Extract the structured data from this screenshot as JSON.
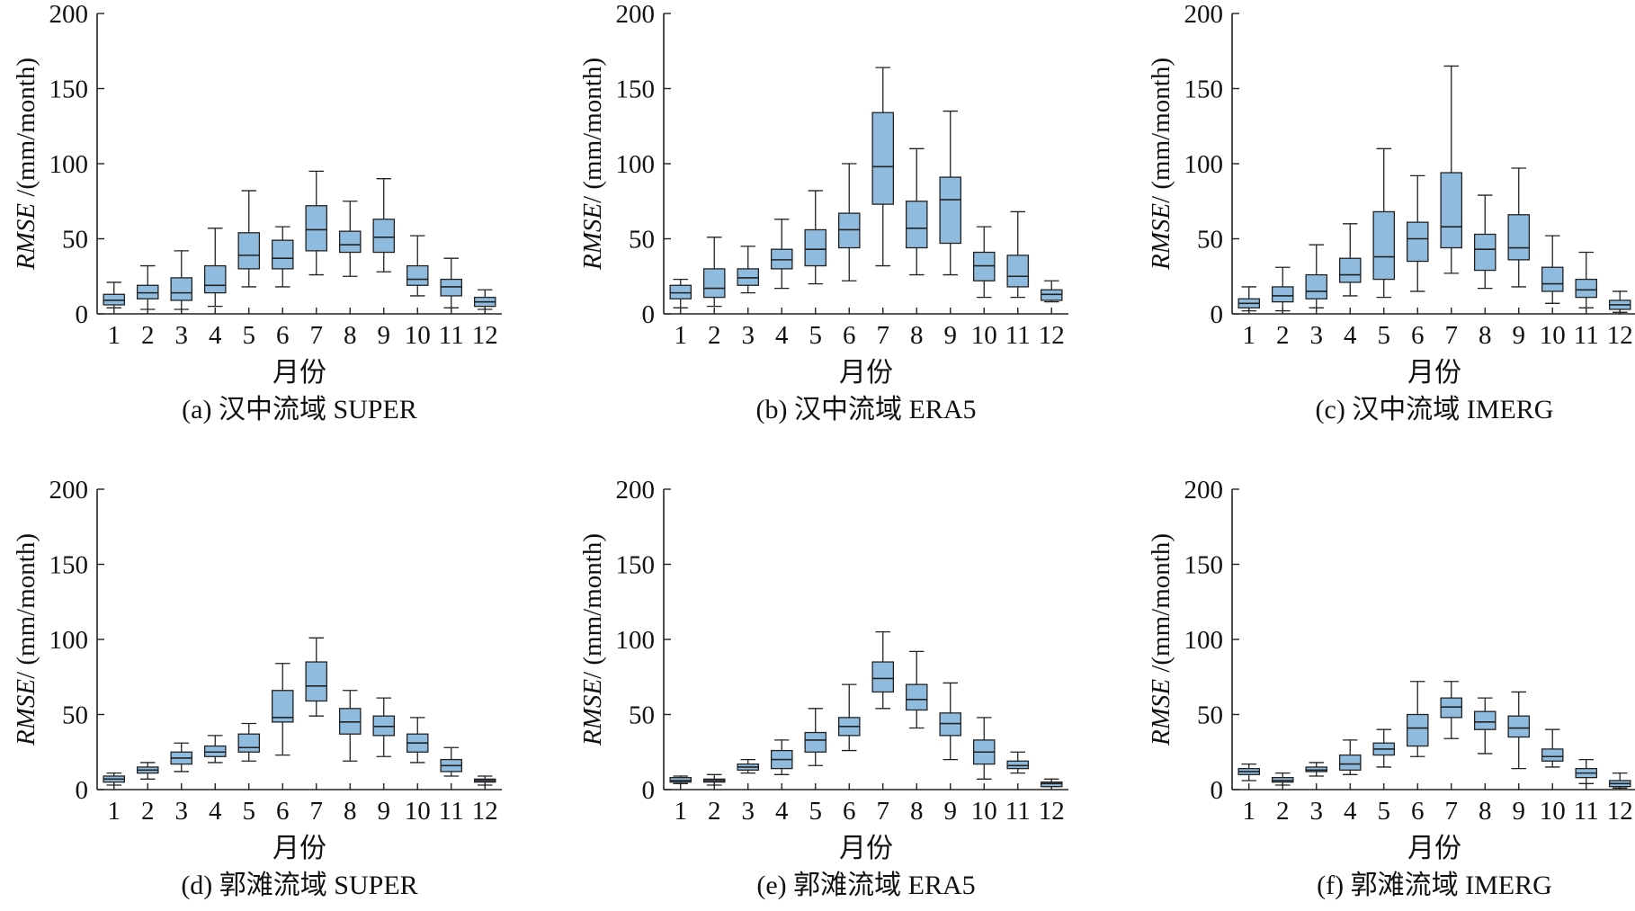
{
  "figure": {
    "caption_prefix_note": "Six boxplot panels of monthly RMSE",
    "box_fill": "#8FBCDE",
    "stroke_color": "#222222"
  },
  "chart_data": [
    {
      "type": "box",
      "label": "(a) 汉中流域 SUPER",
      "xlabel": "月份",
      "ylabel_italic": "RMSE",
      "ylabel_rest": " /(mm/month)",
      "ylim": [
        0,
        200
      ],
      "yticks": [
        0,
        50,
        100,
        150,
        200
      ],
      "categories": [
        "1",
        "2",
        "3",
        "4",
        "5",
        "6",
        "7",
        "8",
        "9",
        "10",
        "11",
        "12"
      ],
      "boxes": [
        {
          "min": 4,
          "q1": 6,
          "median": 9,
          "q3": 13,
          "max": 21
        },
        {
          "min": 3,
          "q1": 10,
          "median": 14,
          "q3": 19,
          "max": 32
        },
        {
          "min": 3,
          "q1": 9,
          "median": 14,
          "q3": 24,
          "max": 42
        },
        {
          "min": 5,
          "q1": 14,
          "median": 19,
          "q3": 32,
          "max": 57
        },
        {
          "min": 18,
          "q1": 30,
          "median": 39,
          "q3": 54,
          "max": 82
        },
        {
          "min": 18,
          "q1": 30,
          "median": 37,
          "q3": 49,
          "max": 58
        },
        {
          "min": 26,
          "q1": 42,
          "median": 56,
          "q3": 72,
          "max": 95
        },
        {
          "min": 25,
          "q1": 41,
          "median": 46,
          "q3": 55,
          "max": 75
        },
        {
          "min": 28,
          "q1": 41,
          "median": 51,
          "q3": 63,
          "max": 90
        },
        {
          "min": 12,
          "q1": 19,
          "median": 23,
          "q3": 32,
          "max": 52
        },
        {
          "min": 4,
          "q1": 12,
          "median": 18,
          "q3": 23,
          "max": 37
        },
        {
          "min": 3,
          "q1": 5,
          "median": 8,
          "q3": 11,
          "max": 16
        }
      ]
    },
    {
      "type": "box",
      "label": "(b) 汉中流域 ERA5",
      "xlabel": "月份",
      "ylabel_italic": "RMSE",
      "ylabel_rest": "/ (mm/month)",
      "ylim": [
        0,
        200
      ],
      "yticks": [
        0,
        50,
        100,
        150,
        200
      ],
      "categories": [
        "1",
        "2",
        "3",
        "4",
        "5",
        "6",
        "7",
        "8",
        "9",
        "10",
        "11",
        "12"
      ],
      "boxes": [
        {
          "min": 4,
          "q1": 10,
          "median": 14,
          "q3": 19,
          "max": 23
        },
        {
          "min": 5,
          "q1": 11,
          "median": 17,
          "q3": 30,
          "max": 51
        },
        {
          "min": 14,
          "q1": 19,
          "median": 24,
          "q3": 30,
          "max": 45
        },
        {
          "min": 17,
          "q1": 30,
          "median": 36,
          "q3": 43,
          "max": 63
        },
        {
          "min": 20,
          "q1": 32,
          "median": 43,
          "q3": 56,
          "max": 82
        },
        {
          "min": 22,
          "q1": 44,
          "median": 56,
          "q3": 67,
          "max": 100
        },
        {
          "min": 32,
          "q1": 73,
          "median": 98,
          "q3": 134,
          "max": 164
        },
        {
          "min": 26,
          "q1": 44,
          "median": 57,
          "q3": 75,
          "max": 110
        },
        {
          "min": 26,
          "q1": 47,
          "median": 76,
          "q3": 91,
          "max": 135
        },
        {
          "min": 11,
          "q1": 22,
          "median": 32,
          "q3": 41,
          "max": 58
        },
        {
          "min": 11,
          "q1": 18,
          "median": 25,
          "q3": 39,
          "max": 68
        },
        {
          "min": 8,
          "q1": 9,
          "median": 13,
          "q3": 16,
          "max": 22
        }
      ]
    },
    {
      "type": "box",
      "label": "(c) 汉中流域 IMERG",
      "xlabel": "月份",
      "ylabel_italic": "RMSE",
      "ylabel_rest": "/ (mm/month)",
      "ylim": [
        0,
        200
      ],
      "yticks": [
        0,
        50,
        100,
        150,
        200
      ],
      "categories": [
        "1",
        "2",
        "3",
        "4",
        "5",
        "6",
        "7",
        "8",
        "9",
        "10",
        "11",
        "12"
      ],
      "boxes": [
        {
          "min": 2,
          "q1": 4,
          "median": 7,
          "q3": 10,
          "max": 18
        },
        {
          "min": 2,
          "q1": 8,
          "median": 12,
          "q3": 18,
          "max": 31
        },
        {
          "min": 4,
          "q1": 10,
          "median": 15,
          "q3": 26,
          "max": 46
        },
        {
          "min": 12,
          "q1": 21,
          "median": 26,
          "q3": 37,
          "max": 60
        },
        {
          "min": 11,
          "q1": 23,
          "median": 38,
          "q3": 68,
          "max": 110
        },
        {
          "min": 15,
          "q1": 35,
          "median": 50,
          "q3": 61,
          "max": 92
        },
        {
          "min": 27,
          "q1": 44,
          "median": 58,
          "q3": 94,
          "max": 165
        },
        {
          "min": 17,
          "q1": 29,
          "median": 43,
          "q3": 53,
          "max": 79
        },
        {
          "min": 18,
          "q1": 36,
          "median": 44,
          "q3": 66,
          "max": 97
        },
        {
          "min": 7,
          "q1": 15,
          "median": 20,
          "q3": 31,
          "max": 52
        },
        {
          "min": 4,
          "q1": 11,
          "median": 16,
          "q3": 23,
          "max": 41
        },
        {
          "min": 1,
          "q1": 3,
          "median": 6,
          "q3": 9,
          "max": 15
        }
      ]
    },
    {
      "type": "box",
      "label": "(d) 郭滩流域 SUPER",
      "xlabel": "月份",
      "ylabel_italic": "RMSE",
      "ylabel_rest": "/ (mm/month)",
      "ylim": [
        0,
        200
      ],
      "yticks": [
        0,
        50,
        100,
        150,
        200
      ],
      "categories": [
        "1",
        "2",
        "3",
        "4",
        "5",
        "6",
        "7",
        "8",
        "9",
        "10",
        "11",
        "12"
      ],
      "boxes": [
        {
          "min": 3,
          "q1": 5,
          "median": 7,
          "q3": 9,
          "max": 11
        },
        {
          "min": 7,
          "q1": 11,
          "median": 13,
          "q3": 15,
          "max": 18
        },
        {
          "min": 12,
          "q1": 17,
          "median": 21,
          "q3": 25,
          "max": 31
        },
        {
          "min": 18,
          "q1": 22,
          "median": 25,
          "q3": 29,
          "max": 36
        },
        {
          "min": 19,
          "q1": 25,
          "median": 28,
          "q3": 37,
          "max": 44
        },
        {
          "min": 23,
          "q1": 45,
          "median": 48,
          "q3": 66,
          "max": 84
        },
        {
          "min": 49,
          "q1": 59,
          "median": 69,
          "q3": 85,
          "max": 101
        },
        {
          "min": 19,
          "q1": 37,
          "median": 45,
          "q3": 54,
          "max": 66
        },
        {
          "min": 22,
          "q1": 36,
          "median": 42,
          "q3": 49,
          "max": 61
        },
        {
          "min": 18,
          "q1": 25,
          "median": 31,
          "q3": 37,
          "max": 48
        },
        {
          "min": 9,
          "q1": 12,
          "median": 16,
          "q3": 20,
          "max": 28
        },
        {
          "min": 3,
          "q1": 5,
          "median": 6,
          "q3": 7,
          "max": 9
        }
      ]
    },
    {
      "type": "box",
      "label": "(e) 郭滩流域 ERA5",
      "xlabel": "月份",
      "ylabel_italic": "RMSE",
      "ylabel_rest": "/ (mm/month)",
      "ylim": [
        0,
        200
      ],
      "yticks": [
        0,
        50,
        100,
        150,
        200
      ],
      "categories": [
        "1",
        "2",
        "3",
        "4",
        "5",
        "6",
        "7",
        "8",
        "9",
        "10",
        "11",
        "12"
      ],
      "boxes": [
        {
          "min": 4,
          "q1": 5,
          "median": 6,
          "q3": 8,
          "max": 9
        },
        {
          "min": 3,
          "q1": 5,
          "median": 6,
          "q3": 7,
          "max": 10
        },
        {
          "min": 11,
          "q1": 13,
          "median": 15,
          "q3": 17,
          "max": 20
        },
        {
          "min": 10,
          "q1": 14,
          "median": 20,
          "q3": 26,
          "max": 33
        },
        {
          "min": 16,
          "q1": 25,
          "median": 33,
          "q3": 38,
          "max": 54
        },
        {
          "min": 26,
          "q1": 36,
          "median": 42,
          "q3": 48,
          "max": 70
        },
        {
          "min": 54,
          "q1": 65,
          "median": 74,
          "q3": 85,
          "max": 105
        },
        {
          "min": 41,
          "q1": 53,
          "median": 60,
          "q3": 70,
          "max": 92
        },
        {
          "min": 20,
          "q1": 36,
          "median": 44,
          "q3": 51,
          "max": 71
        },
        {
          "min": 7,
          "q1": 17,
          "median": 25,
          "q3": 33,
          "max": 48
        },
        {
          "min": 11,
          "q1": 14,
          "median": 16,
          "q3": 19,
          "max": 25
        },
        {
          "min": 2,
          "q1": 2,
          "median": 4,
          "q3": 5,
          "max": 7
        }
      ]
    },
    {
      "type": "box",
      "label": "(f) 郭滩流域 IMERG",
      "xlabel": "月份",
      "ylabel_italic": "RMSE",
      "ylabel_rest": " /(mm/month)",
      "ylim": [
        0,
        200
      ],
      "yticks": [
        0,
        50,
        100,
        150,
        200
      ],
      "categories": [
        "1",
        "2",
        "3",
        "4",
        "5",
        "6",
        "7",
        "8",
        "9",
        "10",
        "11",
        "12"
      ],
      "boxes": [
        {
          "min": 6,
          "q1": 10,
          "median": 12,
          "q3": 14,
          "max": 17
        },
        {
          "min": 3,
          "q1": 5,
          "median": 6,
          "q3": 8,
          "max": 11
        },
        {
          "min": 9,
          "q1": 12,
          "median": 13,
          "q3": 15,
          "max": 18
        },
        {
          "min": 10,
          "q1": 13,
          "median": 17,
          "q3": 23,
          "max": 33
        },
        {
          "min": 15,
          "q1": 23,
          "median": 27,
          "q3": 31,
          "max": 40
        },
        {
          "min": 22,
          "q1": 29,
          "median": 41,
          "q3": 50,
          "max": 72
        },
        {
          "min": 34,
          "q1": 48,
          "median": 55,
          "q3": 61,
          "max": 72
        },
        {
          "min": 24,
          "q1": 40,
          "median": 45,
          "q3": 52,
          "max": 61
        },
        {
          "min": 14,
          "q1": 35,
          "median": 41,
          "q3": 49,
          "max": 65
        },
        {
          "min": 15,
          "q1": 19,
          "median": 22,
          "q3": 27,
          "max": 40
        },
        {
          "min": 4,
          "q1": 8,
          "median": 11,
          "q3": 14,
          "max": 20
        },
        {
          "min": 1,
          "q1": 2,
          "median": 4,
          "q3": 6,
          "max": 11
        }
      ]
    }
  ]
}
